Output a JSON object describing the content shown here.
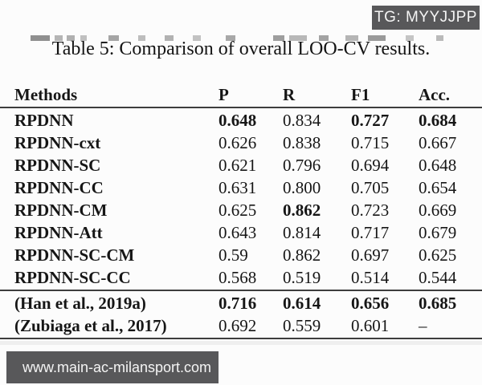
{
  "overlays": {
    "tg_badge": "TG: MYYJJPP",
    "url_badge": "www.main-ac-milansport.com"
  },
  "title": "Table 5: Comparison of overall LOO-CV results.",
  "table": {
    "columns": [
      "Methods",
      "P",
      "R",
      "F1",
      "Acc."
    ],
    "main_rows": [
      {
        "method": "RPDNN",
        "values": [
          "0.648",
          "0.834",
          "0.727",
          "0.684"
        ],
        "bold": [
          true,
          false,
          true,
          true
        ]
      },
      {
        "method": "RPDNN-cxt",
        "values": [
          "0.626",
          "0.838",
          "0.715",
          "0.667"
        ],
        "bold": [
          false,
          false,
          false,
          false
        ]
      },
      {
        "method": "RPDNN-SC",
        "values": [
          "0.621",
          "0.796",
          "0.694",
          "0.648"
        ],
        "bold": [
          false,
          false,
          false,
          false
        ]
      },
      {
        "method": "RPDNN-CC",
        "values": [
          "0.631",
          "0.800",
          "0.705",
          "0.654"
        ],
        "bold": [
          false,
          false,
          false,
          false
        ]
      },
      {
        "method": "RPDNN-CM",
        "values": [
          "0.625",
          "0.862",
          "0.723",
          "0.669"
        ],
        "bold": [
          false,
          true,
          false,
          false
        ]
      },
      {
        "method": "RPDNN-Att",
        "values": [
          "0.643",
          "0.814",
          "0.717",
          "0.679"
        ],
        "bold": [
          false,
          false,
          false,
          false
        ]
      },
      {
        "method": "RPDNN-SC-CM",
        "values": [
          "0.59",
          "0.862",
          "0.697",
          "0.625"
        ],
        "bold": [
          false,
          false,
          false,
          false
        ]
      },
      {
        "method": "RPDNN-SC-CC",
        "values": [
          "0.568",
          "0.519",
          "0.514",
          "0.544"
        ],
        "bold": [
          false,
          false,
          false,
          false
        ]
      }
    ],
    "baseline_rows": [
      {
        "method": "(Han et al., 2019a)",
        "values": [
          "0.716",
          "0.614",
          "0.656",
          "0.685"
        ],
        "bold": [
          true,
          true,
          true,
          true
        ]
      },
      {
        "method": "(Zubiaga et al., 2017)",
        "values": [
          "0.692",
          "0.559",
          "0.601",
          "–"
        ],
        "bold": [
          false,
          false,
          false,
          false
        ]
      }
    ]
  }
}
